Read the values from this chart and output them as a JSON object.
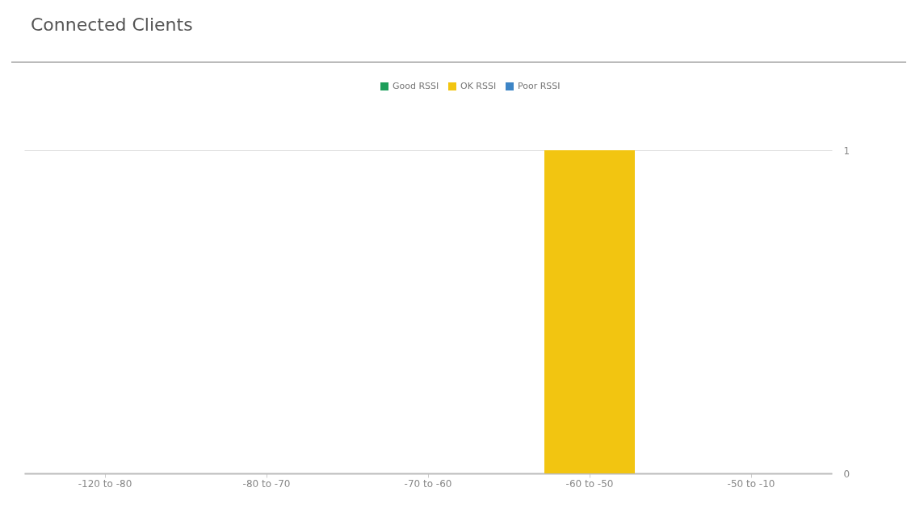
{
  "chart_data": {
    "type": "bar",
    "title": "Connected Clients",
    "categories": [
      "-120 to -80",
      "-80 to -70",
      "-70 to -60",
      "-60 to -50",
      "-50 to -10"
    ],
    "series": [
      {
        "name": "Good RSSI",
        "color": "#1e9e5a",
        "values": [
          0,
          0,
          0,
          0,
          0
        ]
      },
      {
        "name": "OK RSSI",
        "color": "#f2c511",
        "values": [
          0,
          0,
          0,
          1,
          0
        ]
      },
      {
        "name": "Poor RSSI",
        "color": "#3d85c6",
        "values": [
          0,
          0,
          0,
          0,
          0
        ]
      }
    ],
    "ylim": [
      0,
      1
    ],
    "yticks": [
      0,
      1
    ],
    "grid": "y",
    "legend": "top"
  }
}
